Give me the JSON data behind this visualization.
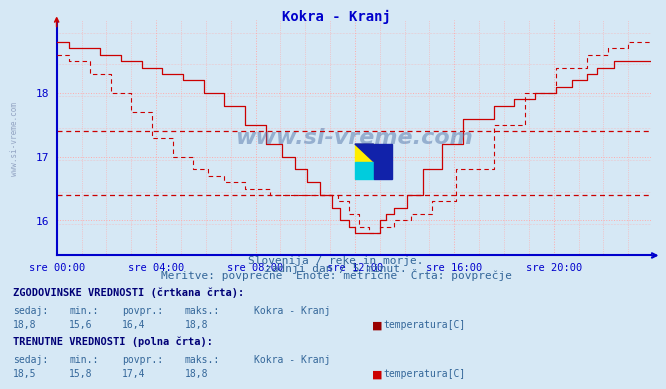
{
  "title": "Kokra - Kranj",
  "title_color": "#0000cc",
  "bg_color": "#d6e8f5",
  "plot_bg_color": "#d6e8f5",
  "grid_color": "#ffaaaa",
  "axis_color": "#0000cc",
  "line_color": "#cc0000",
  "xmin": 0,
  "xmax": 287,
  "ymin": 15.45,
  "ymax": 19.15,
  "yticks": [
    16,
    17,
    18
  ],
  "xtick_labels": [
    "sre 00:00",
    "sre 04:00",
    "sre 08:00",
    "sre 12:00",
    "sre 16:00",
    "sre 20:00"
  ],
  "xtick_positions": [
    0,
    48,
    96,
    144,
    192,
    240
  ],
  "avg_historical": 16.4,
  "avg_current": 17.4,
  "subtitle1": "Slovenija / reke in morje.",
  "subtitle2": "zadnji dan / 5 minut.",
  "subtitle3": "Meritve: povprečne  Enote: metrične  Črta: povprečje",
  "legend_hist_label": "ZGODOVINSKE VREDNOSTI (črtkana črta):",
  "legend_curr_label": "TRENUTNE VREDNOSTI (polna črta):",
  "col_headers": [
    "sedaj:",
    "min.:",
    "povpr.:",
    "maks.:",
    "Kokra - Kranj"
  ],
  "hist_values": [
    "18,8",
    "15,6",
    "16,4",
    "18,8"
  ],
  "curr_values": [
    "18,5",
    "15,8",
    "17,4",
    "18,8"
  ],
  "series_label": "temperatura[C]",
  "hist_swatch_color": "#990000",
  "curr_swatch_color": "#cc0000"
}
